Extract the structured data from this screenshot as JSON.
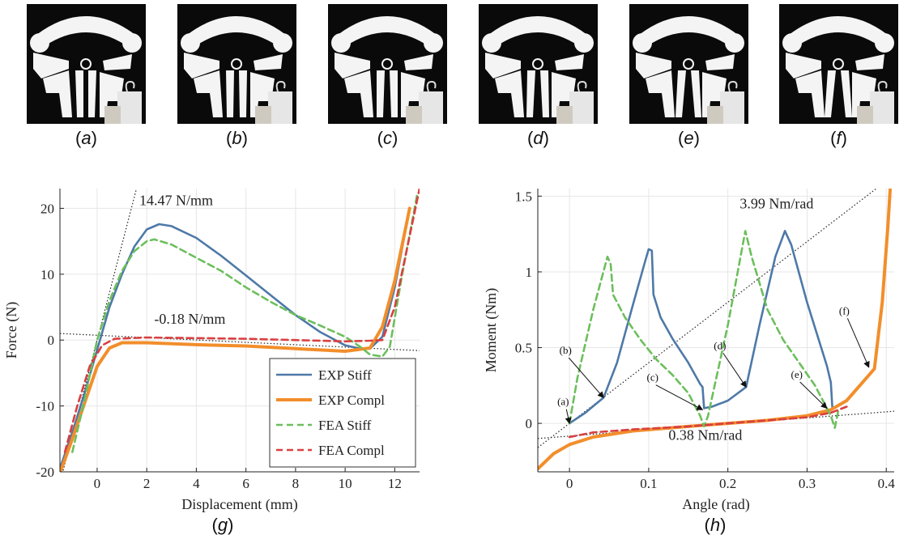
{
  "photos": [
    {
      "label": "(",
      "letter": "a",
      "close": ")"
    },
    {
      "label": "(",
      "letter": "b",
      "close": ")"
    },
    {
      "label": "(",
      "letter": "c",
      "close": ")"
    },
    {
      "label": "(",
      "letter": "d",
      "close": ")"
    },
    {
      "label": "(",
      "letter": "e",
      "close": ")"
    },
    {
      "label": "(",
      "letter": "f",
      "close": ")"
    }
  ],
  "colors": {
    "exp_stiff": "#4e79a7",
    "exp_compl": "#f28e2b",
    "fea_stiff": "#6cbf5c",
    "fea_compl": "#d94040",
    "grid": "#e6e6e6",
    "fit": "#222222"
  },
  "chart_data": [
    {
      "type": "line",
      "panel": "g",
      "caption": "g",
      "xlabel": "Displacement (mm)",
      "ylabel": "Force (N)",
      "xlim": [
        -1.5,
        13
      ],
      "ylim": [
        -20,
        23
      ],
      "xticks": [
        0,
        2,
        4,
        6,
        8,
        10,
        12
      ],
      "yticks": [
        -20,
        -10,
        0,
        10,
        20
      ],
      "grid": true,
      "legend_position": "bottom-right",
      "annotations": [
        {
          "text": "14.47 N/mm",
          "x": 1.7,
          "y": 20.5
        },
        {
          "text": "-0.18 N/mm",
          "x": 2.3,
          "y": 2.5
        }
      ],
      "fit_lines": [
        {
          "name": "stiff-fit",
          "points": [
            [
              -1.5,
              -21.7
            ],
            [
              5.8,
              84
            ]
          ]
        },
        {
          "name": "compliant-fit",
          "points": [
            [
              -1.5,
              1.0
            ],
            [
              13,
              -1.6
            ]
          ]
        }
      ],
      "series": [
        {
          "name": "EXP Stiff",
          "key": "exp_stiff",
          "style": "solid",
          "points": [
            [
              -1.5,
              -19.5
            ],
            [
              -1,
              -14
            ],
            [
              -0.5,
              -8
            ],
            [
              0,
              -1.5
            ],
            [
              0.5,
              5
            ],
            [
              1,
              10
            ],
            [
              1.5,
              14.2
            ],
            [
              2,
              16.8
            ],
            [
              2.5,
              17.6
            ],
            [
              3,
              17.3
            ],
            [
              4,
              15.5
            ],
            [
              5,
              12.8
            ],
            [
              6,
              9.8
            ],
            [
              7,
              6.8
            ],
            [
              8,
              3.8
            ],
            [
              9,
              1.2
            ],
            [
              10,
              -0.8
            ],
            [
              10.5,
              -1.2
            ],
            [
              11,
              -1.3
            ],
            [
              11.5,
              0.5
            ],
            [
              12,
              8
            ],
            [
              12.6,
              20
            ]
          ]
        },
        {
          "name": "EXP Compl",
          "key": "exp_compl",
          "style": "solid",
          "points": [
            [
              -1.5,
              -20.2
            ],
            [
              -1,
              -15
            ],
            [
              -0.5,
              -9.5
            ],
            [
              0,
              -4
            ],
            [
              0.5,
              -1.2
            ],
            [
              1,
              -0.4
            ],
            [
              2,
              -0.4
            ],
            [
              4,
              -0.7
            ],
            [
              6,
              -0.9
            ],
            [
              8,
              -1.3
            ],
            [
              10,
              -1.7
            ],
            [
              11,
              -1.2
            ],
            [
              11.5,
              2
            ],
            [
              12,
              9
            ],
            [
              12.6,
              20
            ]
          ]
        },
        {
          "name": "FEA Stiff",
          "key": "fea_stiff",
          "style": "dashed",
          "points": [
            [
              -1,
              -17
            ],
            [
              -0.5,
              -9
            ],
            [
              0,
              0
            ],
            [
              0.5,
              6
            ],
            [
              1,
              10.5
            ],
            [
              1.5,
              13.5
            ],
            [
              2,
              15
            ],
            [
              2.3,
              15.3
            ],
            [
              3,
              14.5
            ],
            [
              4,
              12.5
            ],
            [
              5,
              10.5
            ],
            [
              6,
              8
            ],
            [
              7,
              5.8
            ],
            [
              8,
              3.8
            ],
            [
              9,
              2.2
            ],
            [
              10,
              0.5
            ],
            [
              10.6,
              -1
            ],
            [
              11,
              -2.2
            ],
            [
              11.5,
              -2.5
            ],
            [
              11.8,
              -1
            ],
            [
              12.3,
              10
            ],
            [
              12.9,
              22
            ]
          ]
        },
        {
          "name": "FEA Compl",
          "key": "fea_compl",
          "style": "dashed",
          "points": [
            [
              -1.3,
              -17
            ],
            [
              -0.8,
              -10
            ],
            [
              -0.3,
              -4
            ],
            [
              0.2,
              -0.8
            ],
            [
              0.7,
              0.2
            ],
            [
              2,
              0.4
            ],
            [
              4,
              0.3
            ],
            [
              6,
              0.2
            ],
            [
              8,
              0
            ],
            [
              10,
              -0.2
            ],
            [
              11,
              -0.1
            ],
            [
              11.5,
              0
            ],
            [
              12,
              5
            ],
            [
              12.5,
              14
            ],
            [
              13,
              23
            ]
          ]
        }
      ]
    },
    {
      "type": "line",
      "panel": "h",
      "caption": "h",
      "xlabel": "Angle (rad)",
      "ylabel": "Moment (Nm)",
      "xlim": [
        -0.04,
        0.41
      ],
      "ylim": [
        -0.32,
        1.55
      ],
      "xticks": [
        0,
        0.1,
        0.2,
        0.3,
        0.4
      ],
      "yticks": [
        0,
        0.5,
        1,
        1.5
      ],
      "grid": true,
      "annotations": [
        {
          "text": "3.99 Nm/rad",
          "x": 0.215,
          "y": 1.42
        },
        {
          "text": "0.38 Nm/rad",
          "x": 0.125,
          "y": -0.11
        }
      ],
      "fit_lines": [
        {
          "name": "stiff-fit",
          "points": [
            [
              -0.04,
              -0.16
            ],
            [
              0.39,
              1.56
            ]
          ]
        },
        {
          "name": "compliant-fit",
          "points": [
            [
              -0.04,
              -0.1
            ],
            [
              0.41,
              0.08
            ]
          ]
        }
      ],
      "state_labels": [
        {
          "text": "(a)",
          "tx": -0.008,
          "ty": 0.12,
          "px": 0.0,
          "py": 0.0
        },
        {
          "text": "(b)",
          "tx": -0.005,
          "ty": 0.46,
          "px": 0.043,
          "py": 0.17
        },
        {
          "text": "(c)",
          "tx": 0.105,
          "ty": 0.28,
          "px": 0.168,
          "py": 0.09
        },
        {
          "text": "(d)",
          "tx": 0.19,
          "ty": 0.49,
          "px": 0.223,
          "py": 0.24
        },
        {
          "text": "(e)",
          "tx": 0.287,
          "ty": 0.3,
          "px": 0.325,
          "py": 0.1
        },
        {
          "text": "(f)",
          "tx": 0.347,
          "ty": 0.72,
          "px": 0.378,
          "py": 0.37
        }
      ],
      "series": [
        {
          "name": "EXP Stiff",
          "key": "exp_stiff",
          "style": "solid",
          "points": [
            [
              0,
              0
            ],
            [
              0.02,
              0.07
            ],
            [
              0.043,
              0.17
            ],
            [
              0.06,
              0.4
            ],
            [
              0.08,
              0.78
            ],
            [
              0.095,
              1.06
            ],
            [
              0.1,
              1.15
            ],
            [
              0.104,
              1.14
            ],
            [
              0.106,
              0.85
            ],
            [
              0.115,
              0.7
            ],
            [
              0.13,
              0.56
            ],
            [
              0.15,
              0.4
            ],
            [
              0.165,
              0.26
            ],
            [
              0.168,
              0.24
            ],
            [
              0.17,
              0.1
            ],
            [
              0.18,
              0.11
            ],
            [
              0.2,
              0.15
            ],
            [
              0.223,
              0.24
            ],
            [
              0.24,
              0.65
            ],
            [
              0.26,
              1.1
            ],
            [
              0.272,
              1.27
            ],
            [
              0.28,
              1.18
            ],
            [
              0.3,
              0.8
            ],
            [
              0.325,
              0.38
            ],
            [
              0.33,
              0.27
            ],
            [
              0.332,
              0.1
            ],
            [
              0.34,
              0.12
            ]
          ]
        },
        {
          "name": "EXP Compl",
          "key": "exp_compl",
          "style": "solid",
          "points": [
            [
              -0.04,
              -0.3
            ],
            [
              -0.02,
              -0.2
            ],
            [
              0,
              -0.14
            ],
            [
              0.03,
              -0.09
            ],
            [
              0.08,
              -0.05
            ],
            [
              0.15,
              -0.02
            ],
            [
              0.2,
              0
            ],
            [
              0.25,
              0.02
            ],
            [
              0.3,
              0.05
            ],
            [
              0.33,
              0.09
            ],
            [
              0.35,
              0.15
            ],
            [
              0.37,
              0.27
            ],
            [
              0.385,
              0.36
            ],
            [
              0.395,
              0.8
            ],
            [
              0.402,
              1.3
            ],
            [
              0.405,
              1.55
            ]
          ]
        },
        {
          "name": "FEA Stiff",
          "key": "fea_stiff",
          "style": "dashed",
          "points": [
            [
              0,
              0
            ],
            [
              0.01,
              0.3
            ],
            [
              0.03,
              0.75
            ],
            [
              0.048,
              1.1
            ],
            [
              0.052,
              1.05
            ],
            [
              0.055,
              0.85
            ],
            [
              0.07,
              0.7
            ],
            [
              0.09,
              0.55
            ],
            [
              0.11,
              0.42
            ],
            [
              0.13,
              0.32
            ],
            [
              0.15,
              0.2
            ],
            [
              0.165,
              0.05
            ],
            [
              0.17,
              -0.02
            ],
            [
              0.175,
              0.05
            ],
            [
              0.2,
              0.65
            ],
            [
              0.222,
              1.27
            ],
            [
              0.23,
              1.1
            ],
            [
              0.25,
              0.75
            ],
            [
              0.27,
              0.55
            ],
            [
              0.29,
              0.4
            ],
            [
              0.31,
              0.25
            ],
            [
              0.33,
              0.05
            ],
            [
              0.335,
              -0.03
            ],
            [
              0.34,
              0.1
            ]
          ]
        },
        {
          "name": "FEA Compl",
          "key": "fea_compl",
          "style": "dashed",
          "points": [
            [
              0,
              -0.09
            ],
            [
              0.03,
              -0.06
            ],
            [
              0.08,
              -0.04
            ],
            [
              0.15,
              -0.02
            ],
            [
              0.2,
              0
            ],
            [
              0.25,
              0.02
            ],
            [
              0.3,
              0.04
            ],
            [
              0.33,
              0.07
            ],
            [
              0.35,
              0.11
            ]
          ]
        }
      ]
    }
  ]
}
